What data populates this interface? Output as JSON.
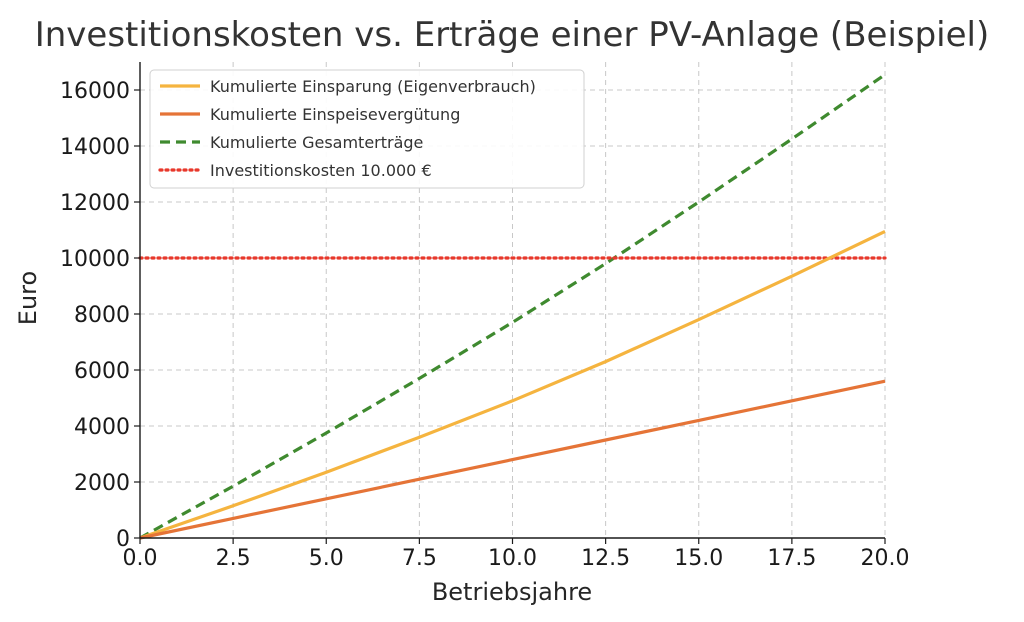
{
  "chart_data": {
    "type": "line",
    "title": "Investitionskosten vs. Erträge einer PV-Anlage (Beispiel)",
    "xlabel": "Betriebsjahre",
    "ylabel": "Euro",
    "xlim": [
      0,
      20
    ],
    "ylim": [
      0,
      17000
    ],
    "x_ticks": [
      "0.0",
      "2.5",
      "5.0",
      "7.5",
      "10.0",
      "12.5",
      "15.0",
      "17.5",
      "20.0"
    ],
    "y_ticks": [
      "0",
      "2000",
      "4000",
      "6000",
      "8000",
      "10000",
      "12000",
      "14000",
      "16000"
    ],
    "grid": true,
    "legend_position": "top-left",
    "x": [
      0,
      2.5,
      5,
      7.5,
      10,
      12.5,
      15,
      17.5,
      20
    ],
    "series": [
      {
        "name": "Kumulierte Einsparung (Eigenverbrauch)",
        "color": "#f5b43f",
        "style": "solid",
        "values": [
          0,
          1150,
          2350,
          3600,
          4900,
          6300,
          7800,
          9350,
          10950
        ]
      },
      {
        "name": "Kumulierte Einspeisevergütung",
        "color": "#e57437",
        "style": "solid",
        "values": [
          0,
          700,
          1400,
          2100,
          2800,
          3500,
          4200,
          4900,
          5600
        ]
      },
      {
        "name": "Kumulierte Gesamterträge",
        "color": "#3f8a2f",
        "style": "dashed",
        "values": [
          0,
          1850,
          3750,
          5700,
          7700,
          9800,
          12000,
          14250,
          16550
        ]
      },
      {
        "name": "Investitionskosten 10.000 €",
        "color": "#e8382b",
        "style": "dotted",
        "values": [
          10000,
          10000,
          10000,
          10000,
          10000,
          10000,
          10000,
          10000,
          10000
        ]
      }
    ]
  }
}
